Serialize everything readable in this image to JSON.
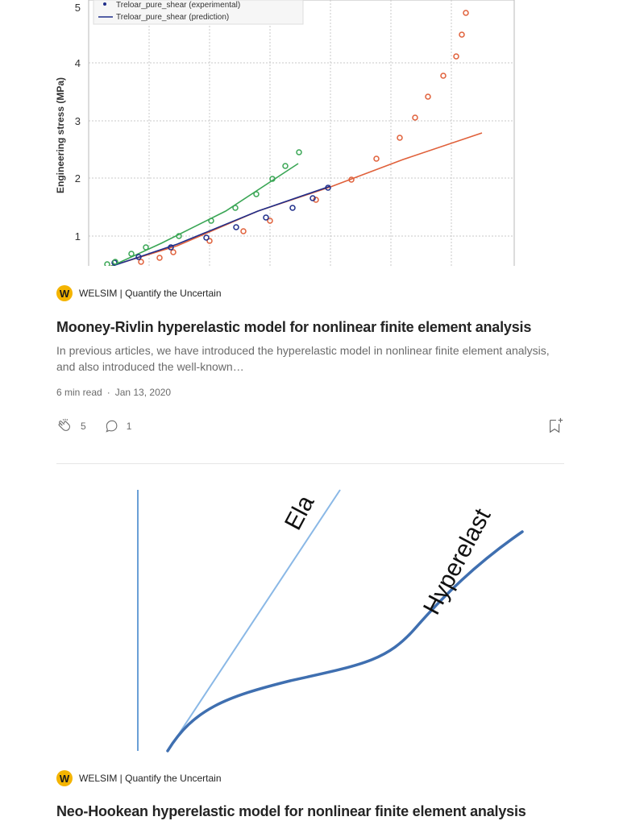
{
  "card1": {
    "chart": {
      "legend": [
        {
          "label": "Treloar_pure_shear (experimental)"
        },
        {
          "label": "Treloar_pure_shear (prediction)"
        }
      ],
      "ylabel": "Engineering stress (MPa)",
      "yticks": [
        "5",
        "4",
        "3",
        "2",
        "1"
      ]
    },
    "publication": "WELSIM | Quantify the Uncertain",
    "publication_logo": "W",
    "title": "Mooney-Rivlin hyperelastic model for nonlinear finite element analysis",
    "description": "In previous articles, we have introduced the hyperelastic model in nonlinear finite element analysis, and also introduced the well-known…",
    "read_time": "6 min read",
    "separator": "·",
    "date": "Jan 13, 2020",
    "claps": "5",
    "comments": "1"
  },
  "card2": {
    "diagram": {
      "label_elastic": "Ela",
      "label_hyperelastic": "Hyperelast"
    },
    "publication": "WELSIM | Quantify the Uncertain",
    "publication_logo": "W",
    "title": "Neo-Hookean hyperelastic model for nonlinear finite element analysis"
  },
  "icons": {
    "clap": "clap-icon",
    "comment": "comment-icon",
    "bookmark": "bookmark-add-icon"
  },
  "colors": {
    "brand_logo": "#f4b400",
    "green_series": "#3aa655",
    "blue_series": "#1f2e8a",
    "orange_series": "#e0603a",
    "diagram_line": "#4a7dbf"
  }
}
